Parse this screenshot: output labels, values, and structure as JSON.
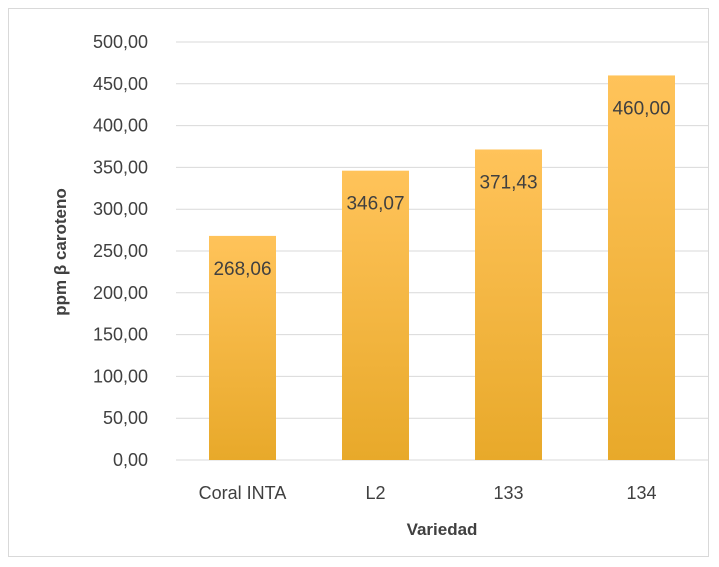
{
  "chart_data": {
    "type": "bar",
    "categories": [
      "Coral INTA",
      "L2",
      "133",
      "134"
    ],
    "values": [
      268.06,
      346.07,
      371.43,
      460.0
    ],
    "data_labels": [
      "268,06",
      "346,07",
      "371,43",
      "460,00"
    ],
    "xlabel": "Variedad",
    "ylabel": "ppm β caroteno",
    "ylim": [
      0,
      500
    ],
    "yticks": [
      0,
      50,
      100,
      150,
      200,
      250,
      300,
      350,
      400,
      450,
      500
    ],
    "ytick_labels": [
      "0,00",
      "50,00",
      "100,00",
      "150,00",
      "200,00",
      "250,00",
      "300,00",
      "350,00",
      "400,00",
      "450,00",
      "500,00"
    ],
    "grid": true,
    "legend": "none",
    "colors": {
      "bar_top": "#ffc35a",
      "bar_bottom": "#e8a92a",
      "grid": "#d9d9d9",
      "text": "#404040"
    }
  }
}
